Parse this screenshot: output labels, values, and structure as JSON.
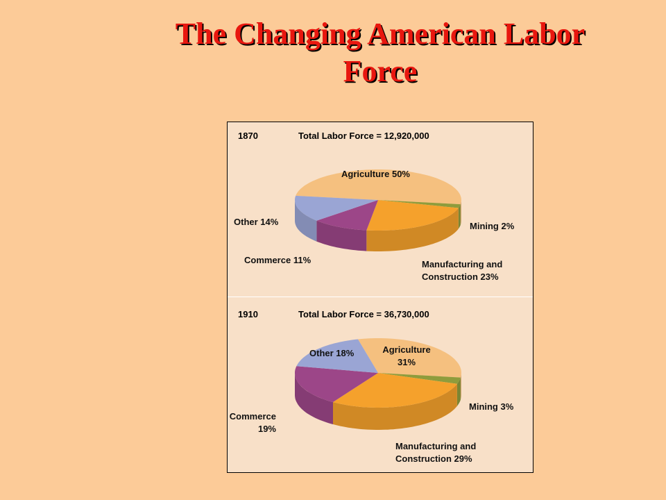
{
  "title": "The Changing American Labor Force",
  "chart_data": [
    {
      "type": "pie",
      "subtitle": "1870",
      "title": "Total Labor Force = 12,920,000",
      "categories": [
        "Agriculture",
        "Mining",
        "Manufacturing and Construction",
        "Commerce",
        "Other"
      ],
      "values": [
        50,
        2,
        23,
        11,
        14
      ],
      "value_labels": [
        "50%",
        "2%",
        "23%",
        "11%",
        "14%"
      ],
      "colors": [
        "#f5c07f",
        "#8f9c3c",
        "#f5a12c",
        "#9c4688",
        "#9aa5d4"
      ]
    },
    {
      "type": "pie",
      "subtitle": "1910",
      "title": "Total Labor Force = 36,730,000",
      "categories": [
        "Agriculture",
        "Mining",
        "Manufacturing and Construction",
        "Commerce",
        "Other"
      ],
      "values": [
        31,
        3,
        29,
        19,
        18
      ],
      "value_labels": [
        "31%",
        "3%",
        "29%",
        "19%",
        "18%"
      ],
      "colors": [
        "#f5c07f",
        "#8f9c3c",
        "#f5a12c",
        "#9c4688",
        "#9aa5d4"
      ]
    }
  ]
}
